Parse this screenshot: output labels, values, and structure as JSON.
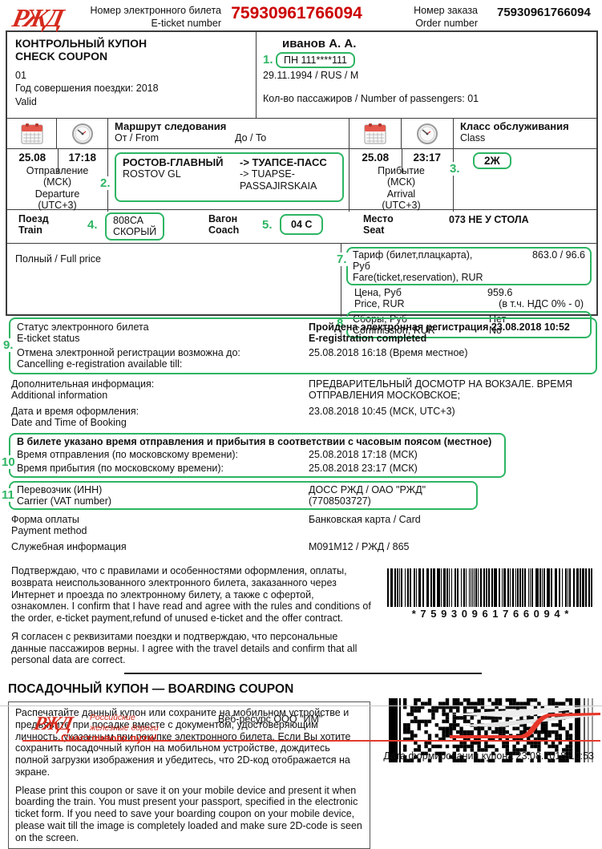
{
  "colors": {
    "red": "#cc0000",
    "brand_red": "#d52b1e",
    "green": "#2db563"
  },
  "header": {
    "logo_text": "РЖД",
    "eticket_label": "Номер электронного билета\nE-ticket number",
    "eticket_number": "75930961766094",
    "order_label": "Номер заказа\nOrder number",
    "order_number": "75930961766094"
  },
  "check_coupon": {
    "title": "КОНТРОЛЬНЫЙ КУПОН\nCHECK COUPON",
    "lines": "01\nГод совершения поездки: 2018\nValid"
  },
  "passenger": {
    "name": "иванов А. А.",
    "document": "ПН 111****111",
    "details": "29.11.1994 / RUS / M",
    "count_line": "Кол-во пассажиров / Number of passengers: 01"
  },
  "annotations": {
    "n1": "1.",
    "n2": "2.",
    "n3": "3.",
    "n4": "4.",
    "n5": "5.",
    "n7": "7.",
    "n8": "8.",
    "n9": "9.",
    "n10": "10",
    "n11": "11"
  },
  "route": {
    "title": "Маршрут следования",
    "from_label": "От / From",
    "to_label": "До / To",
    "class_label_ru": "Класс обслуживания",
    "class_label_en": "Class",
    "dep_date": "25.08",
    "dep_time": "17:18",
    "dep_caption": "Отправление\n(МСК)\nDeparture\n(UTC+3)",
    "arr_date": "25.08",
    "arr_time": "23:17",
    "arr_caption": "Прибытие\n(МСК)\nArrival\n(UTC+3)",
    "from_ru": "РОСТОВ-ГЛАВНЫЙ",
    "from_en": "ROSTOV GL",
    "to_ru": "-> ТУАПСЕ-ПАСС",
    "to_en": "-> TUAPSE-PASSAJIRSKAIA",
    "class_value": "2Ж"
  },
  "train": {
    "train_label": "Поезд\nTrain",
    "train_value": "808СА\nСКОРЫЙ",
    "coach_label": "Вагон\nCoach",
    "coach_value": "04 С",
    "seat_label": "Место\nSeat",
    "seat_value": "073 НЕ У СТОЛА"
  },
  "fare": {
    "type_line": "Полный / Full price",
    "tariff_label": "Тариф (билет,плацкарта), Руб\nFare(ticket,reservation), RUR",
    "tariff_value": "863.0 / 96.6",
    "price_label": "Цена, Руб\nPrice, RUR",
    "price_value": "959.6",
    "price_vat": "(в т.ч. НДС 0% - 0)",
    "fees_label": "Сборы, Руб\nCommission, RUR",
    "fees_value": "Нет\nNo"
  },
  "status": {
    "status_label": "Статус электронного билета\nE-ticket status",
    "status_value": "Пройдена электронная регистрация 23.08.2018 10:52\nE-registration completed",
    "cancel_label": "Отмена электронной регистрации возможна до:\nCancelling e-registration available till:",
    "cancel_value": "25.08.2018 16:18 (Время местное)",
    "add_label": "Дополнительная информация:\nAdditional information",
    "add_value": "ПРЕДВАРИТЕЛЬНЫЙ ДОСМОТР НА ВОКЗАЛЕ. ВРЕМЯ ОТПРАВЛЕНИЯ МОСКОВСКОЕ;",
    "booking_label": "Дата и время оформления:\nDate and Time of Booking",
    "booking_value": "23.08.2018 10:45 (МСК, UTC+3)"
  },
  "timezone": {
    "header": "В билете указано время отправления и прибытия в соответствии с часовым поясом (местное)",
    "dep_label": "Время отправления (по московскому времени):",
    "dep_value": "25.08.2018 17:18 (МСК)",
    "arr_label": "Время прибытия (по московскому времени):",
    "arr_value": "25.08.2018 23:17 (МСК)"
  },
  "carrier": {
    "label": "Перевозчик (ИНН)\nCarrier (VAT number)",
    "value": "ДОСС РЖД / ОАО \"РЖД\" (7708503727)"
  },
  "payment": {
    "label": "Форма оплаты\nPayment method",
    "value": "Банковская карта / Card"
  },
  "service": {
    "label": "Служебная информация",
    "value": "М091М12 / РЖД / 865"
  },
  "confirm": {
    "p1": "Подтверждаю, что с правилами и особенностями оформления, оплаты, возврата неиспользованного электронного билета, заказанного через Интернет и проезда по электронному билету, а также с офертой, ознакомлен. I confirm that I have read and agree with the rules and conditions of the order, e-ticket payment,refund of unused e-ticket and the offer contract.",
    "p2": "Я согласен с реквизитами поездки и подтверждаю, что персональные данные пассажиров верны. I agree with the travel details and confirm that all personal data are correct."
  },
  "barcode": {
    "digits": "* 7 5 9 3 0 9 6 1 7 6 6 0 9 4 *"
  },
  "boarding": {
    "title": "ПОСАДОЧНЫЙ КУПОН — BOARDING COUPON",
    "text_ru": "Распечатайте данный купон или сохраните на мобильном устройстве и предъявите при посадке вместе с документом, удостоверяющим личность, указанным при покупке электронного билета. Если Вы хотите сохранить посадочный купон на мобильном устройстве, дождитесь полной загрузки изображения и убедитесь, что 2D-код отображается на экране.",
    "text_en": "Please print this coupon or save it on your mobile device and present it when boarding the train. You must present your passport, specified in the electronic ticket form. If you need to save your boarding coupon on your mobile device, please wait till the image is completely loaded and make sure 2D-code is seen on the screen."
  },
  "footer": {
    "logo_text": "РЖД",
    "brand": "Российские\nжелезные дороги",
    "slogan": "Счастливого пути!",
    "web": "Веб-ресурс ООО \"ИМ\"",
    "formed": "Дата формирования купона 23.08.2018 10:53"
  }
}
